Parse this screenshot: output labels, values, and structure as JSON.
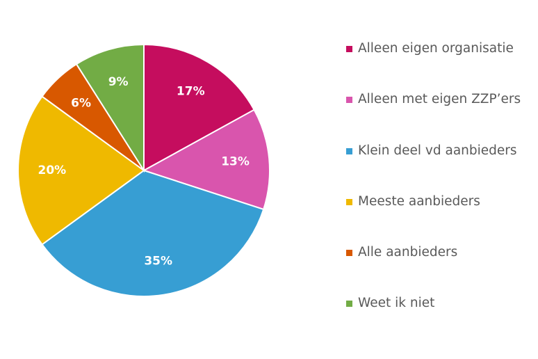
{
  "chart_data": {
    "type": "pie",
    "title": "",
    "legend_position": "right",
    "start_angle": "12 o'clock, clockwise",
    "slices": [
      {
        "label": "Alleen eigen organisatie",
        "value": 17,
        "display": "17%",
        "color": "#c50d5e"
      },
      {
        "label": "Alleen met eigen ZZP’ers",
        "value": 13,
        "display": "13%",
        "color": "#d955ad"
      },
      {
        "label": "Klein deel vd aanbieders",
        "value": 35,
        "display": "35%",
        "color": "#379ed3"
      },
      {
        "label": "Meeste aanbieders",
        "value": 20,
        "display": "20%",
        "color": "#efb900"
      },
      {
        "label": "Alle aanbieders",
        "value": 6,
        "display": "6%",
        "color": "#d85800"
      },
      {
        "label": "Weet ik niet",
        "value": 9,
        "display": "9%",
        "color": "#72ac45"
      }
    ]
  }
}
